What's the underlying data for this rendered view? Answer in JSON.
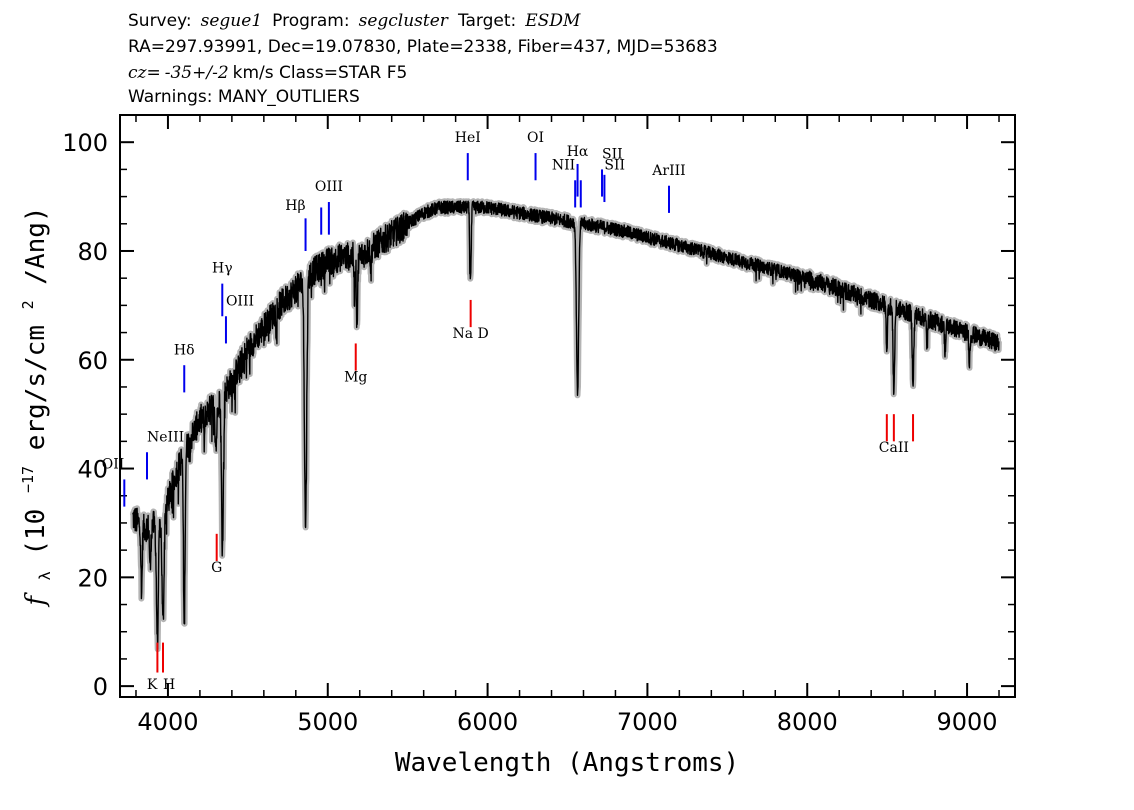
{
  "header": {
    "line1": {
      "survey_label": "Survey:",
      "survey": "segue1",
      "program_label": "Program:",
      "program": "segcluster",
      "target_label": "Target:",
      "target": "ESDM"
    },
    "line2": "RA=297.93991, Dec=19.07830, Plate=2338, Fiber=437, MJD=53683",
    "line3": {
      "cz_label": "cz=",
      "cz_value": "-35+/-2",
      "cz_rest": " km/s  Class=STAR F5"
    },
    "line4": "Warnings: MANY_OUTLIERS"
  },
  "chart_data": {
    "type": "line",
    "xlabel": "Wavelength (Angstroms)",
    "ylabel": "f_λ (10^-17 erg/s/cm^2/Ang)",
    "ylabel_parts": {
      "f": "f",
      "lambda": "λ",
      "unit_open": " (10",
      "exp1": "−17",
      "unit_mid": " erg/s/cm",
      "exp2": "2",
      "unit_close": "/Ang)"
    },
    "xlim": [
      3700,
      9300
    ],
    "ylim": [
      -2,
      105
    ],
    "x_ticks": [
      4000,
      5000,
      6000,
      7000,
      8000,
      9000
    ],
    "x_tick_labels": [
      "4000",
      "5000",
      "6000",
      "7000",
      "8000",
      "9000"
    ],
    "y_ticks": [
      0,
      20,
      40,
      60,
      80,
      100
    ],
    "y_tick_labels": [
      "0",
      "20",
      "40",
      "60",
      "80",
      "100"
    ],
    "colors": {
      "spectrum": "#000000",
      "error_band": "#b4b4b4",
      "emission_marker": "#0000ee",
      "absorption_marker": "#ee0000"
    },
    "spectrum": {
      "continuum": [
        [
          3780,
          31
        ],
        [
          3850,
          29
        ],
        [
          3950,
          30
        ],
        [
          4000,
          34
        ],
        [
          4050,
          39
        ],
        [
          4100,
          43
        ],
        [
          4200,
          49
        ],
        [
          4300,
          52
        ],
        [
          4400,
          56
        ],
        [
          4500,
          62
        ],
        [
          4600,
          66
        ],
        [
          4700,
          70
        ],
        [
          4800,
          73
        ],
        [
          4900,
          76
        ],
        [
          5000,
          78
        ],
        [
          5100,
          79
        ],
        [
          5200,
          79
        ],
        [
          5300,
          81
        ],
        [
          5400,
          83
        ],
        [
          5500,
          85
        ],
        [
          5600,
          87
        ],
        [
          5700,
          88
        ],
        [
          5800,
          88
        ],
        [
          5900,
          88
        ],
        [
          6000,
          88
        ],
        [
          6200,
          87
        ],
        [
          6400,
          86
        ],
        [
          6600,
          85
        ],
        [
          6800,
          84
        ],
        [
          7000,
          82.5
        ],
        [
          7200,
          81
        ],
        [
          7400,
          79.5
        ],
        [
          7600,
          78
        ],
        [
          7800,
          76.5
        ],
        [
          8000,
          75
        ],
        [
          8200,
          73
        ],
        [
          8400,
          71
        ],
        [
          8600,
          69
        ],
        [
          8800,
          67
        ],
        [
          9000,
          65
        ],
        [
          9200,
          63
        ]
      ],
      "absorption_lines": [
        {
          "x": 3835,
          "depth": 12,
          "width": 4
        },
        {
          "x": 3889,
          "depth": 8,
          "width": 4
        },
        {
          "x": 3934,
          "depth": 21,
          "width": 6
        },
        {
          "x": 3969,
          "depth": 20,
          "width": 6
        },
        {
          "x": 4102,
          "depth": 32,
          "width": 5
        },
        {
          "x": 4227,
          "depth": 5,
          "width": 3
        },
        {
          "x": 4300,
          "depth": 8,
          "width": 6
        },
        {
          "x": 4341,
          "depth": 28,
          "width": 6
        },
        {
          "x": 4861,
          "depth": 45,
          "width": 7
        },
        {
          "x": 5167,
          "depth": 7,
          "width": 3
        },
        {
          "x": 5183,
          "depth": 12,
          "width": 4
        },
        {
          "x": 5270,
          "depth": 4,
          "width": 3
        },
        {
          "x": 5890,
          "depth": 11,
          "width": 3
        },
        {
          "x": 5896,
          "depth": 9,
          "width": 3
        },
        {
          "x": 6563,
          "depth": 31,
          "width": 7
        },
        {
          "x": 8498,
          "depth": 8,
          "width": 4
        },
        {
          "x": 8542,
          "depth": 15,
          "width": 5
        },
        {
          "x": 8662,
          "depth": 12,
          "width": 5
        },
        {
          "x": 8750,
          "depth": 5,
          "width": 4
        },
        {
          "x": 8863,
          "depth": 5,
          "width": 4
        },
        {
          "x": 9015,
          "depth": 5,
          "width": 4
        }
      ]
    },
    "line_markers": [
      {
        "label": "OII",
        "x": 3727,
        "y1": 33,
        "y2": 38,
        "type": "emission",
        "label_y": 40,
        "anchor": "end"
      },
      {
        "label": "NeIII",
        "x": 3869,
        "y1": 38,
        "y2": 43,
        "type": "emission",
        "label_y": 45,
        "anchor": "start"
      },
      {
        "label": "Hδ",
        "x": 4102,
        "y1": 54,
        "y2": 59,
        "type": "emission",
        "label_y": 61,
        "anchor": "middle"
      },
      {
        "label": "Hγ",
        "x": 4340,
        "y1": 68,
        "y2": 74,
        "type": "emission",
        "label_y": 76,
        "anchor": "middle"
      },
      {
        "label": "OIII",
        "x": 4363,
        "y1": 63,
        "y2": 68,
        "type": "emission",
        "label_y": 70,
        "anchor": "start"
      },
      {
        "label": "Hβ",
        "x": 4861,
        "y1": 80,
        "y2": 86,
        "type": "emission",
        "label_y": 87.5,
        "anchor": "end"
      },
      {
        "label": "OIII",
        "x": 4959,
        "y1": 83,
        "y2": 88,
        "type": "emission",
        "label_y": null,
        "anchor": "middle"
      },
      {
        "label": "OIII",
        "x": 5007,
        "y1": 83,
        "y2": 89,
        "type": "emission",
        "label_y": 91,
        "anchor": "middle"
      },
      {
        "label": "HeI",
        "x": 5876,
        "y1": 93,
        "y2": 98,
        "type": "emission",
        "label_y": 100,
        "anchor": "middle"
      },
      {
        "label": "OI",
        "x": 6300,
        "y1": 93,
        "y2": 98,
        "type": "emission",
        "label_y": 100,
        "anchor": "middle"
      },
      {
        "label": "NII",
        "x": 6548,
        "y1": 88,
        "y2": 93,
        "type": "emission",
        "label_y": 95,
        "anchor": "end"
      },
      {
        "label": "Hα",
        "x": 6563,
        "y1": 90,
        "y2": 96,
        "type": "emission",
        "label_y": 97.5,
        "anchor": "middle"
      },
      {
        "label": "NII",
        "x": 6583,
        "y1": 88,
        "y2": 93,
        "type": "emission",
        "label_y": null,
        "anchor": "start"
      },
      {
        "label": "SII",
        "x": 6716,
        "y1": 90,
        "y2": 95,
        "type": "emission",
        "label_y": 97,
        "anchor": "start"
      },
      {
        "label": "SII",
        "x": 6731,
        "y1": 89,
        "y2": 94,
        "type": "emission",
        "label_y": 95,
        "anchor": "start"
      },
      {
        "label": "ArIII",
        "x": 7135,
        "y1": 87,
        "y2": 92,
        "type": "emission",
        "label_y": 94,
        "anchor": "middle"
      },
      {
        "label": "K",
        "x": 3934,
        "y1": 2.5,
        "y2": 8,
        "type": "absorption",
        "label_y": -0.5,
        "anchor": "end"
      },
      {
        "label": "H",
        "x": 3969,
        "y1": 2.5,
        "y2": 8,
        "type": "absorption",
        "label_y": -0.5,
        "anchor": "start"
      },
      {
        "label": "G",
        "x": 4305,
        "y1": 23,
        "y2": 28,
        "type": "absorption",
        "label_y": 21,
        "anchor": "middle"
      },
      {
        "label": "Mg",
        "x": 5175,
        "y1": 58,
        "y2": 63,
        "type": "absorption",
        "label_y": 56,
        "anchor": "middle"
      },
      {
        "label": "Na D",
        "x": 5894,
        "y1": 66,
        "y2": 71,
        "type": "absorption",
        "label_y": 64,
        "anchor": "middle"
      },
      {
        "label": "",
        "x": 8498,
        "y1": 45,
        "y2": 50,
        "type": "absorption",
        "label_y": null,
        "anchor": "middle"
      },
      {
        "label": "CaII",
        "x": 8542,
        "y1": 45,
        "y2": 50,
        "type": "absorption",
        "label_y": 43,
        "anchor": "middle"
      },
      {
        "label": "",
        "x": 8662,
        "y1": 45,
        "y2": 50,
        "type": "absorption",
        "label_y": null,
        "anchor": "middle"
      }
    ]
  }
}
